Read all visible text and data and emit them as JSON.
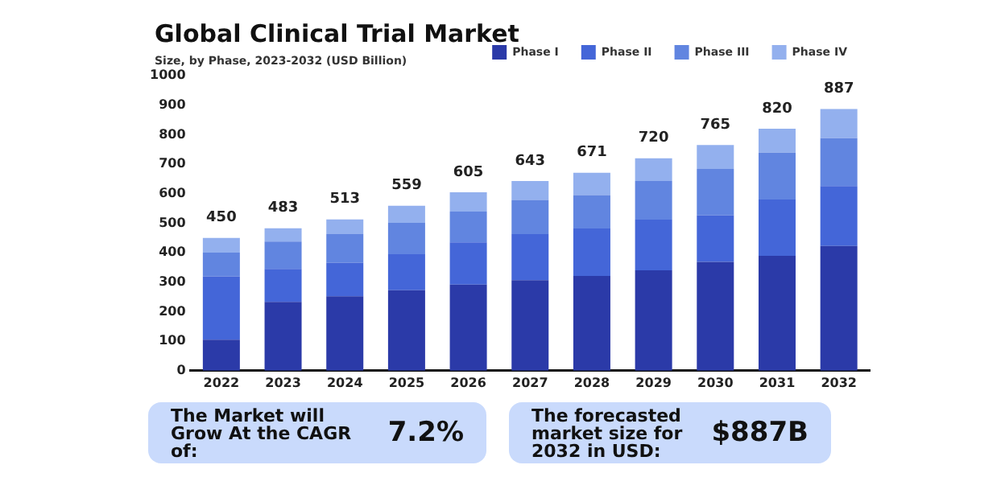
{
  "chart_data": {
    "type": "bar",
    "title": "Global Clinical Trial Market",
    "subtitle": "Size, by Phase, 2023-2032 (USD Billion)",
    "categories": [
      "2022",
      "2023",
      "2024",
      "2025",
      "2026",
      "2027",
      "2028",
      "2029",
      "2030",
      "2031",
      "2032"
    ],
    "series": [
      {
        "name": "Phase I",
        "color": "#2b3aa8",
        "values": [
          105,
          233,
          252,
          273,
          292,
          307,
          321,
          340,
          369,
          389,
          423
        ]
      },
      {
        "name": "Phase II",
        "color": "#4466d8",
        "values": [
          215,
          112,
          114,
          122,
          143,
          156,
          161,
          172,
          158,
          191,
          203
        ]
      },
      {
        "name": "Phase III",
        "color": "#6185e0",
        "values": [
          80,
          93,
          97,
          106,
          104,
          116,
          113,
          131,
          157,
          159,
          162
        ]
      },
      {
        "name": "Phase IV",
        "color": "#93b0ee",
        "values": [
          50,
          45,
          50,
          58,
          66,
          64,
          76,
          77,
          81,
          81,
          99
        ]
      }
    ],
    "stacked": true,
    "totals": [
      "450",
      "483",
      "513",
      "559",
      "605",
      "643",
      "671",
      "720",
      "765",
      "820",
      "887"
    ],
    "ylim": [
      0,
      1000
    ],
    "yticks": [
      0,
      100,
      200,
      300,
      400,
      500,
      600,
      700,
      800,
      900,
      1000
    ],
    "grid": false,
    "legend": "top right",
    "annotations": [
      "The Market will Grow At the CAGR of:",
      "7.2%",
      "The forecasted market size for 2032 in USD:",
      "$887B"
    ]
  }
}
